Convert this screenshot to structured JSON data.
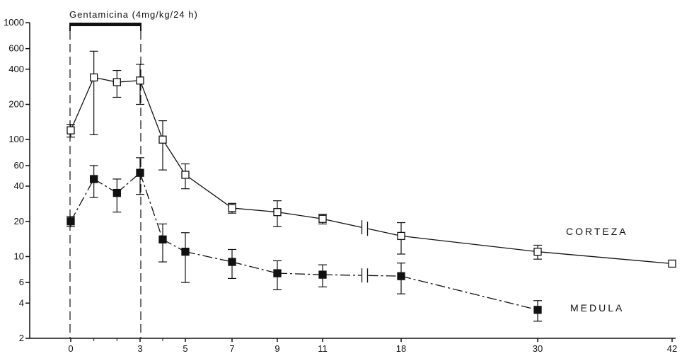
{
  "chart_data": {
    "type": "line",
    "title": "",
    "xlabel": "",
    "ylabel": "",
    "y_scale": "log",
    "ylim": [
      2,
      1000
    ],
    "y_ticks": [
      2,
      4,
      6,
      10,
      20,
      40,
      60,
      100,
      200,
      400,
      600,
      1000
    ],
    "y_tick_labels": [
      "2",
      "4",
      "6",
      "10",
      "20",
      "40",
      "60",
      "100",
      "200",
      "400",
      "600",
      "1000"
    ],
    "x_tick_labels": [
      "0",
      "3",
      "5",
      "7",
      "9",
      "11",
      "18",
      "30",
      "42"
    ],
    "x_axis_break": "between 11 and 18",
    "treatment": {
      "label": "Gentamicina  (4mg/kg/24 h)",
      "start": 0,
      "end": 3
    },
    "grid": false,
    "legend": "labels next to lines",
    "series": [
      {
        "name": "CORTEZA",
        "marker": "open-square",
        "line_style": "solid",
        "x": [
          0,
          1,
          2,
          3,
          4,
          5,
          7,
          9,
          11,
          18,
          30,
          42
        ],
        "values": [
          120,
          340,
          310,
          320,
          100,
          50,
          26,
          24,
          21,
          15,
          11,
          8.7
        ],
        "errors": [
          15,
          230,
          80,
          120,
          45,
          12,
          2.5,
          6,
          2,
          4.5,
          1.5,
          0
        ]
      },
      {
        "name": "MEDULA",
        "marker": "filled-square",
        "line_style": "dash-dot",
        "x": [
          0,
          1,
          2,
          3,
          4,
          5,
          7,
          9,
          11,
          18,
          30
        ],
        "values": [
          20,
          46,
          35,
          52,
          14,
          11,
          9,
          7.2,
          7,
          6.8,
          3.5
        ],
        "errors": [
          2,
          14,
          11,
          18,
          5,
          5,
          2.5,
          2,
          1.5,
          2,
          0.7
        ]
      }
    ],
    "series_label_texts": [
      "CORTEZA",
      "MEDULA"
    ]
  }
}
